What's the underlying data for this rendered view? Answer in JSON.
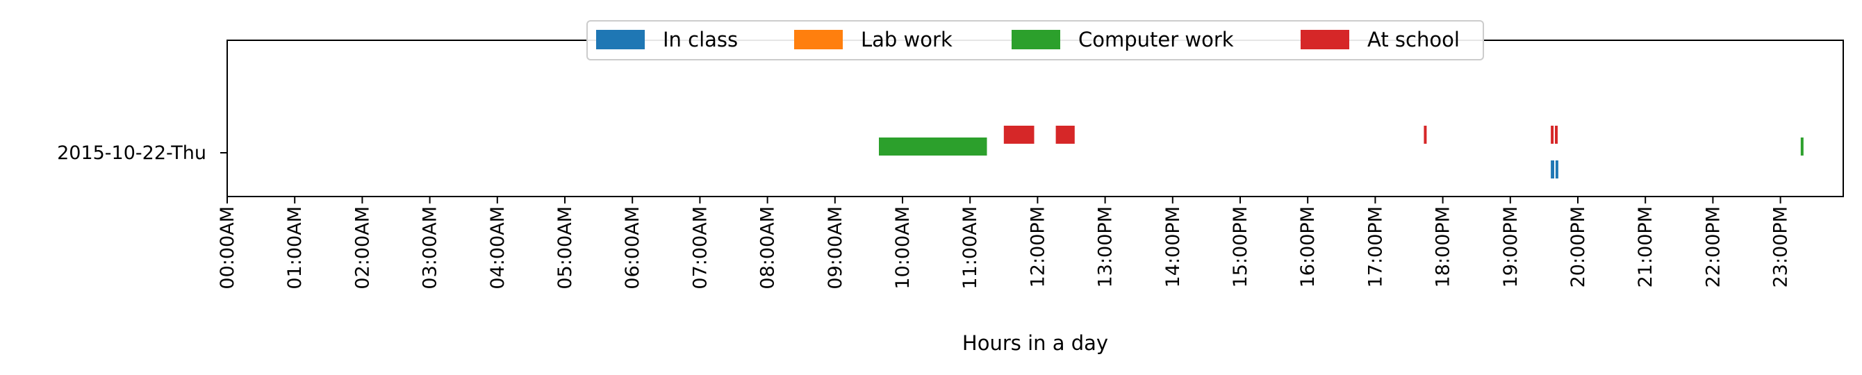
{
  "chart_data": {
    "type": "timeline",
    "xlabel": "Hours in a day",
    "x_range_hours": [
      0,
      24
    ],
    "x_ticks": [
      "00:00AM",
      "01:00AM",
      "02:00AM",
      "03:00AM",
      "04:00AM",
      "05:00AM",
      "06:00AM",
      "07:00AM",
      "08:00AM",
      "09:00AM",
      "10:00AM",
      "11:00AM",
      "12:00PM",
      "13:00PM",
      "14:00PM",
      "15:00PM",
      "16:00PM",
      "17:00PM",
      "18:00PM",
      "19:00PM",
      "20:00PM",
      "21:00PM",
      "22:00PM",
      "23:00PM"
    ],
    "rows": [
      "2015-10-22-Thu"
    ],
    "legend_position": "top-center",
    "series": [
      {
        "name": "In class",
        "color": "#1f77b4",
        "lane": "below",
        "intervals": [
          [
            19.6,
            19.65
          ],
          [
            19.67,
            19.71
          ]
        ]
      },
      {
        "name": "Lab work",
        "color": "#ff7f0e",
        "lane": "middle",
        "intervals": []
      },
      {
        "name": "Computer work",
        "color": "#2ca02c",
        "lane": "middle",
        "intervals": [
          [
            9.65,
            11.25
          ],
          [
            23.3,
            23.34
          ]
        ]
      },
      {
        "name": "At school",
        "color": "#d62728",
        "lane": "above",
        "intervals": [
          [
            11.5,
            11.95
          ],
          [
            12.27,
            12.55
          ],
          [
            17.72,
            17.76
          ],
          [
            19.6,
            19.64
          ],
          [
            19.66,
            19.7
          ]
        ]
      }
    ]
  }
}
